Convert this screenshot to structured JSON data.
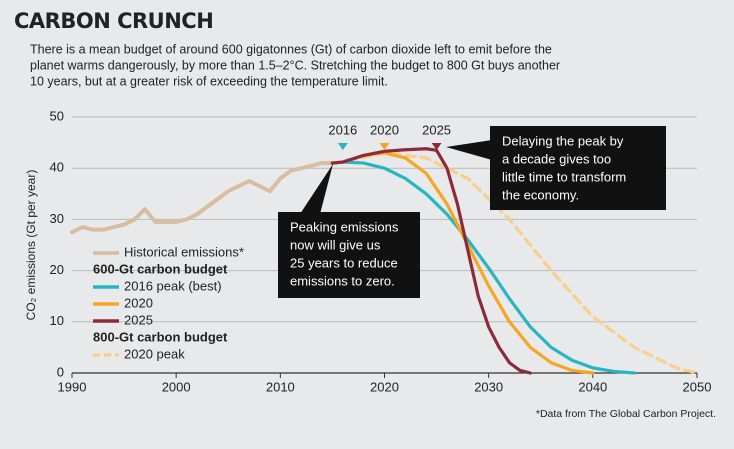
{
  "chart_data": {
    "type": "line",
    "title": "CARBON CRUNCH",
    "subtitle": [
      "There is a mean budget of around 600 gigatonnes (Gt) of carbon dioxide left to emit before the",
      "planet warms dangerously, by more than 1.5–2°C. Stretching the budget to 800 Gt buys another",
      "10 years, but at a greater risk of exceeding the temperature limit."
    ],
    "y_label": "CO₂ emissions (Gt per year)",
    "xlim": [
      1990,
      2050
    ],
    "xticks": [
      1990,
      2000,
      2010,
      2020,
      2030,
      2040,
      2050
    ],
    "ylim": [
      0,
      50
    ],
    "yticks": [
      0,
      10,
      20,
      30,
      40,
      50
    ],
    "grid": true,
    "legend_groups": [
      "600-Gt carbon budget",
      "800-Gt carbon budget"
    ],
    "series": [
      {
        "name": "Historical emissions*",
        "color": "#d8bd9f",
        "style": "solid",
        "x": [
          1990,
          1991,
          1992,
          1993,
          1994,
          1995,
          1996,
          1997,
          1998,
          1999,
          2000,
          2001,
          2002,
          2003,
          2004,
          2005,
          2006,
          2007,
          2008,
          2009,
          2010,
          2011,
          2012,
          2013,
          2014,
          2015
        ],
        "values": [
          27.5,
          28.5,
          28,
          28,
          28.5,
          29,
          30,
          32,
          29.5,
          29.5,
          29.5,
          30,
          31,
          32.5,
          34,
          35.5,
          36.5,
          37.5,
          36.5,
          35.5,
          38,
          39.5,
          40,
          40.5,
          41,
          41
        ]
      },
      {
        "name": "2016 peak (best)",
        "color": "#27b5c3",
        "style": "solid",
        "x": [
          2015,
          2016,
          2018,
          2020,
          2022,
          2024,
          2026,
          2028,
          2030,
          2032,
          2034,
          2036,
          2038,
          2040,
          2042,
          2044
        ],
        "values": [
          41,
          41.2,
          41,
          40,
          38,
          35,
          31,
          26,
          20.5,
          14.5,
          9,
          5,
          2.5,
          1,
          0.3,
          0
        ]
      },
      {
        "name": "2020",
        "color": "#f5a623",
        "style": "solid",
        "x": [
          2015,
          2016,
          2018,
          2020,
          2022,
          2024,
          2026,
          2028,
          2030,
          2032,
          2034,
          2036,
          2038,
          2040
        ],
        "values": [
          41,
          41.2,
          42.5,
          43,
          42,
          39,
          33,
          25,
          17,
          10,
          5,
          2,
          0.5,
          0
        ]
      },
      {
        "name": "2025",
        "color": "#8b2b3a",
        "style": "solid",
        "x": [
          2015,
          2016,
          2018,
          2020,
          2022,
          2024,
          2025,
          2026,
          2027,
          2028,
          2029,
          2030,
          2031,
          2032,
          2033,
          2034
        ],
        "values": [
          41,
          41.2,
          42.5,
          43.3,
          43.6,
          43.8,
          43.5,
          40,
          33,
          24,
          15,
          9,
          5,
          2,
          0.5,
          0
        ]
      },
      {
        "name": "2020 peak",
        "color": "#f9cf8a",
        "style": "dashed",
        "x": [
          2015,
          2016,
          2020,
          2024,
          2028,
          2032,
          2036,
          2040,
          2044,
          2048,
          2050
        ],
        "values": [
          41,
          41.2,
          43,
          42,
          38,
          30,
          20,
          11,
          5,
          1,
          0
        ]
      }
    ],
    "peak_markers": [
      {
        "year": 2016,
        "color": "#27b5c3"
      },
      {
        "year": 2020,
        "color": "#f5a623"
      },
      {
        "year": 2025,
        "color": "#8b2b3a"
      }
    ],
    "annotations": [
      [
        "Peaking emissions",
        "now will give us",
        "25 years to reduce",
        "emissions to zero."
      ],
      [
        "Delaying the peak by",
        "a decade gives too",
        "little time to transform",
        "the economy."
      ]
    ],
    "footnote": "*Data from The Global Carbon Project."
  }
}
